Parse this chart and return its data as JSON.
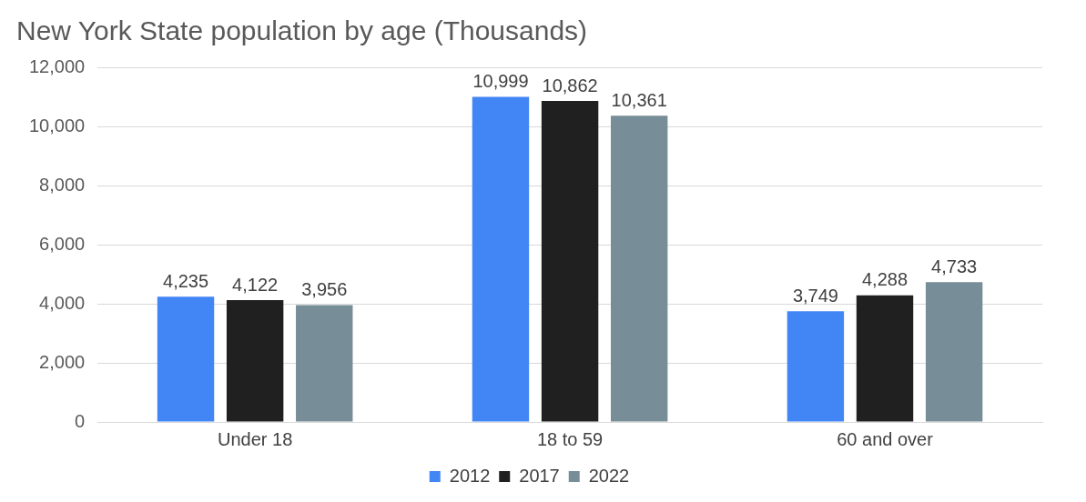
{
  "chart_data": {
    "type": "bar",
    "title": "New York State population by age (Thousands)",
    "categories": [
      "Under 18",
      "18 to 59",
      "60 and over"
    ],
    "series": [
      {
        "name": "2012",
        "color": "#4285f4",
        "values": [
          4235,
          10999,
          3749
        ],
        "value_labels": [
          "4,235",
          "10,999",
          "3,749"
        ]
      },
      {
        "name": "2017",
        "color": "#202020",
        "values": [
          4122,
          10862,
          4288
        ],
        "value_labels": [
          "4,122",
          "10,862",
          "4,288"
        ]
      },
      {
        "name": "2022",
        "color": "#778d98",
        "values": [
          3956,
          10361,
          4733
        ],
        "value_labels": [
          "3,956",
          "10,361",
          "4,733"
        ]
      }
    ],
    "ylim": [
      0,
      12000
    ],
    "yticks": [
      0,
      {
        "value": 2000,
        "label": "2,000"
      },
      {
        "value": 4000,
        "label": "4,000"
      },
      {
        "value": 6000,
        "label": "6,000"
      },
      {
        "value": 8000,
        "label": "8,000"
      },
      {
        "value": 10000,
        "label": "10,000"
      },
      {
        "value": 12000,
        "label": "12,000"
      }
    ],
    "grid": "y",
    "legend": "bottom"
  }
}
